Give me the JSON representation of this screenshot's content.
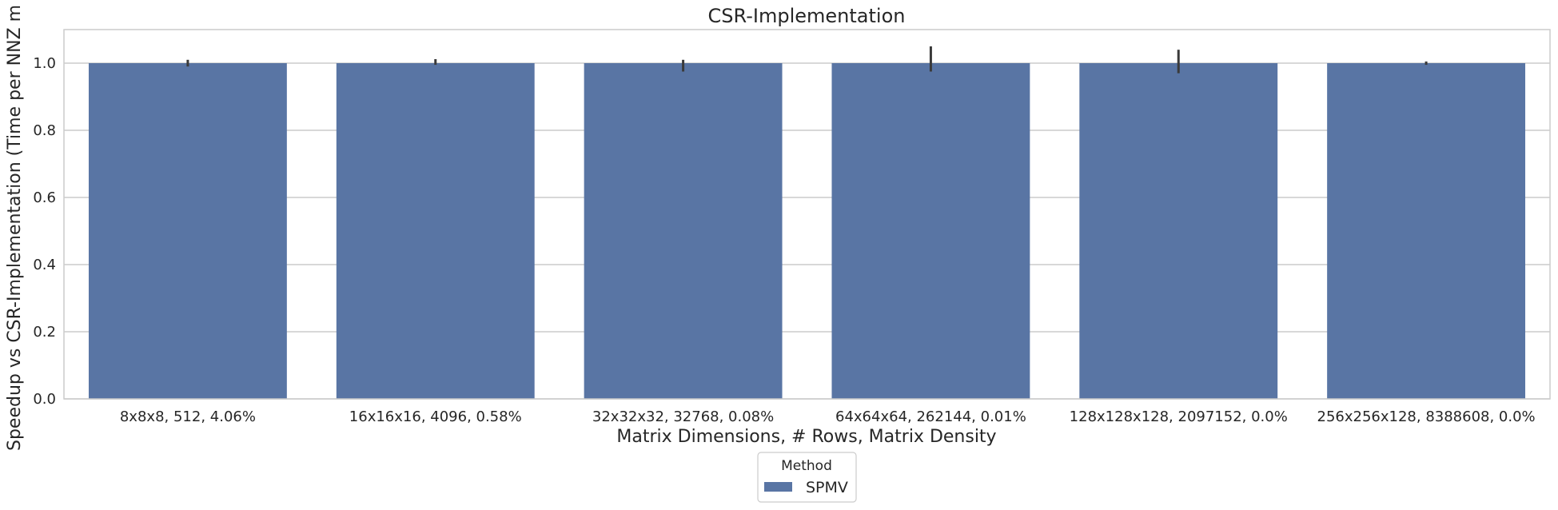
{
  "chart_data": {
    "type": "bar",
    "title": "CSR-Implementation",
    "xlabel": "Matrix Dimensions, # Rows, Matrix Density",
    "ylabel": "Speedup vs CSR-Implementation (Time per NNZ m",
    "categories": [
      "8x8x8, 512, 4.06%",
      "16x16x16, 4096, 0.58%",
      "32x32x32, 32768, 0.08%",
      "64x64x64, 262144, 0.01%",
      "128x128x128, 2097152, 0.0%",
      "256x256x128, 8388608, 0.0%"
    ],
    "series": [
      {
        "name": "SPMV",
        "values": [
          1.0,
          1.0,
          1.0,
          1.0,
          1.0,
          1.0
        ],
        "error_low": [
          0.99,
          0.995,
          0.975,
          0.975,
          0.97,
          0.995
        ],
        "error_high": [
          1.01,
          1.012,
          1.01,
          1.05,
          1.04,
          1.005
        ],
        "color": "#5975a4"
      }
    ],
    "ylim": [
      0,
      1.1
    ],
    "yticks": [
      0.0,
      0.2,
      0.4,
      0.6,
      0.8,
      1.0
    ],
    "ytick_labels": [
      "0.0",
      "0.2",
      "0.4",
      "0.6",
      "0.8",
      "1.0"
    ],
    "grid": "horizontal",
    "legend": {
      "title": "Method",
      "placement": "bottom-center"
    }
  },
  "colors": {
    "bar": "#5975a4",
    "grid": "#cccccc",
    "error_bar": "#3a3a3a"
  }
}
